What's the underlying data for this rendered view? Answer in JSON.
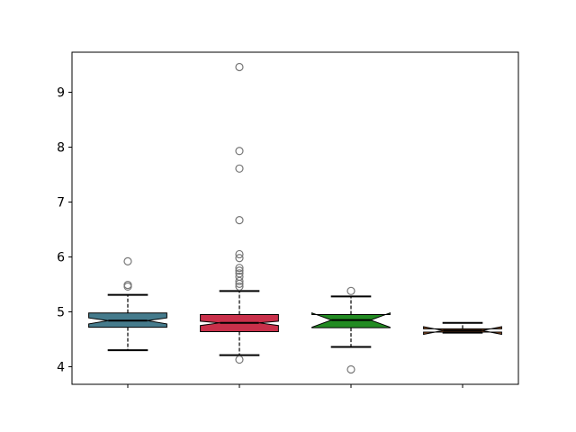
{
  "chart_data": {
    "type": "boxplot",
    "notched": true,
    "title": "",
    "xlabel": "",
    "ylabel": "",
    "ylim": [
      3.68,
      9.73
    ],
    "xlim": [
      0.5,
      4.5
    ],
    "yticks": [
      "4",
      "5",
      "6",
      "7",
      "8",
      "9"
    ],
    "xtick_labels": [
      "",
      "",
      "",
      ""
    ],
    "grid": false,
    "outlier_color": "#777777",
    "boxes": [
      {
        "position": 1,
        "color": "#457b8c",
        "q1": 4.72,
        "median": 4.84,
        "q3": 4.98,
        "whisker_low": 4.3,
        "whisker_high": 5.31,
        "notch_low": 4.78,
        "notch_high": 4.89,
        "outliers": [
          5.92,
          5.49,
          5.46
        ]
      },
      {
        "position": 2,
        "color": "#c9304a",
        "q1": 4.64,
        "median": 4.8,
        "q3": 4.95,
        "whisker_low": 4.21,
        "whisker_high": 5.38,
        "notch_low": 4.75,
        "notch_high": 4.83,
        "outliers": [
          4.13,
          9.46,
          7.93,
          7.61,
          6.67,
          6.05,
          5.98,
          5.8,
          5.75,
          5.7,
          5.64,
          5.56,
          5.51,
          5.46
        ]
      },
      {
        "position": 3,
        "color": "#228b22",
        "q1": 4.71,
        "median": 4.85,
        "q3": 4.95,
        "whisker_low": 4.36,
        "whisker_high": 5.28,
        "notch_low": 4.72,
        "notch_high": 4.98,
        "outliers": [
          5.38,
          3.95
        ]
      },
      {
        "position": 4,
        "color": "#a0582a",
        "q1": 4.63,
        "median": 4.66,
        "q3": 4.69,
        "whisker_low": 4.62,
        "whisker_high": 4.8,
        "notch_low": 4.59,
        "notch_high": 4.73,
        "outliers": []
      }
    ]
  }
}
